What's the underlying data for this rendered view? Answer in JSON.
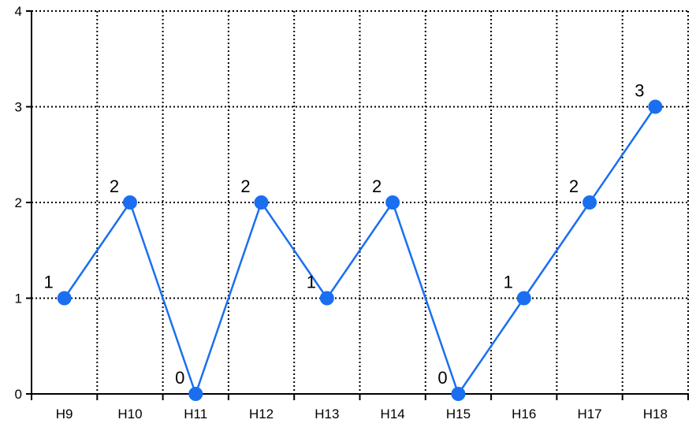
{
  "chart_data": {
    "type": "line",
    "categories": [
      "H9",
      "H10",
      "H11",
      "H12",
      "H13",
      "H14",
      "H15",
      "H16",
      "H17",
      "H18"
    ],
    "series": [
      {
        "values": [
          1,
          2,
          0,
          2,
          1,
          2,
          0,
          1,
          2,
          3
        ]
      }
    ],
    "data_labels": [
      "1",
      "2",
      "0",
      "2",
      "1",
      "2",
      "0",
      "1",
      "2",
      "3"
    ],
    "y_ticks": [
      "0",
      "1",
      "2",
      "3",
      "4"
    ],
    "ylim": [
      0,
      4
    ],
    "title": "",
    "xlabel": "",
    "ylabel": "",
    "grid": true,
    "grid_style": "dotted",
    "legend": "none",
    "colors": {
      "series": "#1a6ff0",
      "grid": "#000000",
      "axis": "#000000"
    }
  }
}
